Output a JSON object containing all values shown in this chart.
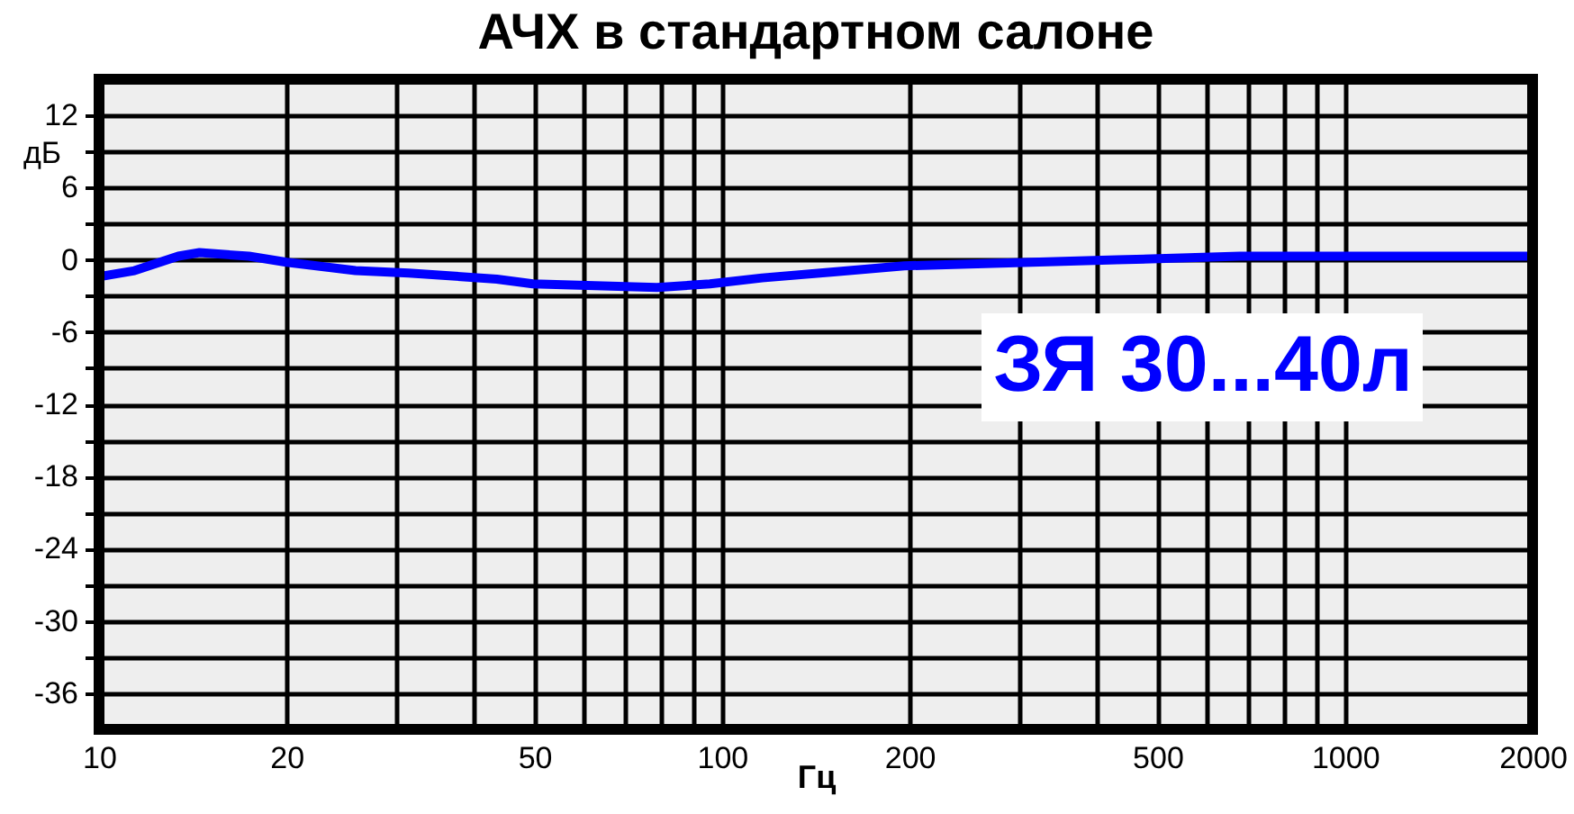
{
  "chart_data": {
    "type": "line",
    "title": "АЧХ в стандартном салоне",
    "xlabel": "Гц",
    "ylabel": "дБ",
    "log": "x",
    "grid": true,
    "marker": "none",
    "line_style": "solid",
    "xlim": [
      10,
      2000
    ],
    "ylim": [
      -39,
      15
    ],
    "xticks": [
      10,
      20,
      {
        "value": 30,
        "label": null
      },
      {
        "value": 40,
        "label": null
      },
      50,
      {
        "value": 60,
        "label": null
      },
      {
        "value": 70,
        "label": null
      },
      {
        "value": 80,
        "label": null
      },
      {
        "value": 90,
        "label": null
      },
      100,
      200,
      {
        "value": 300,
        "label": null
      },
      {
        "value": 400,
        "label": null
      },
      500,
      {
        "value": 600,
        "label": null
      },
      {
        "value": 700,
        "label": null
      },
      {
        "value": 800,
        "label": null
      },
      {
        "value": 900,
        "label": null
      },
      1000,
      2000
    ],
    "yticks": [
      12,
      {
        "value": 9,
        "label": null
      },
      6,
      {
        "value": 3,
        "label": null
      },
      0,
      {
        "value": -3,
        "label": null
      },
      -6,
      {
        "value": -9,
        "label": null
      },
      -12,
      {
        "value": -15,
        "label": null
      },
      -18,
      {
        "value": -21,
        "label": null
      },
      -24,
      {
        "value": -27,
        "label": null
      },
      -30,
      {
        "value": -33,
        "label": null
      },
      -36
    ],
    "x": [
      10,
      11.4,
      13.4,
      14.5,
      17.4,
      20,
      25.8,
      31.4,
      43.5,
      49.7,
      78.6,
      95.6,
      116,
      151,
      196,
      272,
      431,
      678,
      2000
    ],
    "series": [
      {
        "name": "ЗЯ 30...40л",
        "color": "#0000ff",
        "values": [
          -1.4,
          -0.9,
          0.3,
          0.6,
          0.3,
          -0.2,
          -0.9,
          -1.1,
          -1.6,
          -2.0,
          -2.3,
          -2.0,
          -1.5,
          -1.0,
          -0.5,
          -0.3,
          0.0,
          0.3,
          0.3
        ]
      }
    ]
  }
}
